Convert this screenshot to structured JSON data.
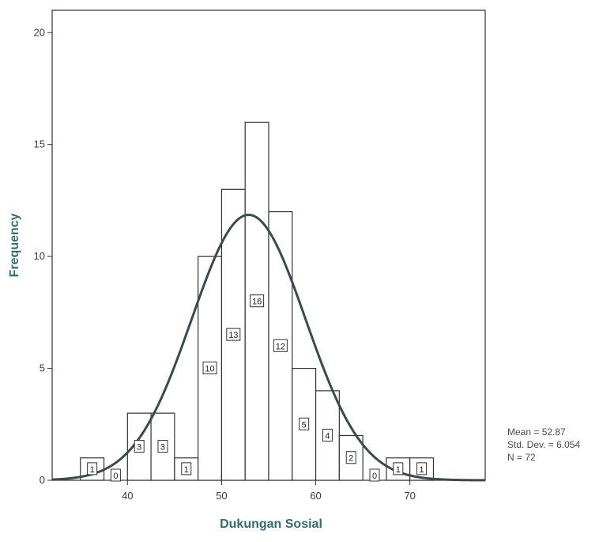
{
  "chart_data": {
    "type": "bar",
    "subtype": "histogram",
    "xlabel": "Dukungan Sosial",
    "ylabel": "Frequency",
    "x_ticks": [
      40,
      50,
      60,
      70
    ],
    "y_ticks": [
      0,
      5,
      10,
      15,
      20
    ],
    "xlim": [
      32,
      78
    ],
    "ylim": [
      0,
      21
    ],
    "bin_width": 2.5,
    "bins": [
      {
        "center": 36.25,
        "count": 1
      },
      {
        "center": 38.75,
        "count": 0
      },
      {
        "center": 41.25,
        "count": 3
      },
      {
        "center": 43.75,
        "count": 3
      },
      {
        "center": 46.25,
        "count": 1
      },
      {
        "center": 48.75,
        "count": 10
      },
      {
        "center": 51.25,
        "count": 13
      },
      {
        "center": 53.75,
        "count": 16
      },
      {
        "center": 56.25,
        "count": 12
      },
      {
        "center": 58.75,
        "count": 5
      },
      {
        "center": 61.25,
        "count": 4
      },
      {
        "center": 63.75,
        "count": 2
      },
      {
        "center": 66.25,
        "count": 0
      },
      {
        "center": 68.75,
        "count": 1
      },
      {
        "center": 71.25,
        "count": 1
      }
    ],
    "normal_curve": {
      "mean": 52.87,
      "std_dev": 6.054,
      "n": 72
    },
    "stats": {
      "mean_label": "Mean = 52.87",
      "std_label": "Std. Dev. = 6.054",
      "n_label": "N = 72"
    },
    "colors": {
      "bars": "#ffffff",
      "bar_stroke": "#333333",
      "curve": "#3b4a4a",
      "axis_title": "#2f6f6a"
    }
  }
}
